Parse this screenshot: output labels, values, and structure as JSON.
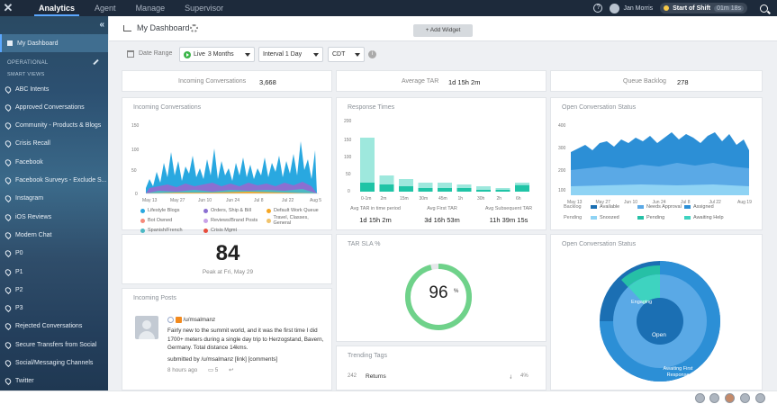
{
  "topbar": {
    "tabs": [
      "Analytics",
      "Agent",
      "Manage",
      "Supervisor"
    ],
    "user_name": "Jan Morris",
    "shift_label": "Start of Shift",
    "shift_time": "01m 18s"
  },
  "sidebar": {
    "my_dashboard": "My Dashboard",
    "section_operational": "OPERATIONAL",
    "section_smart_views": "SMART VIEWS",
    "items": [
      "ABC Intents",
      "Approved Conversations",
      "Community - Products & Blogs",
      "Crisis Recall",
      "Facebook",
      "Facebook Surveys - Exclude S...",
      "Instagram",
      "iOS Reviews",
      "Modern Chat",
      "P0",
      "P1",
      "P2",
      "P3",
      "Rejected Conversations",
      "Secure Transfers from Social",
      "Social/Messaging Channels",
      "Twitter"
    ]
  },
  "header": {
    "title": "My Dashboard",
    "add_widget": "+ Add Widget"
  },
  "filters": {
    "date_range_label": "Date Range",
    "live": "Live",
    "period": "3 Months",
    "interval": "Interval 1 Day",
    "timezone": "CDT"
  },
  "stats": {
    "incoming_label": "Incoming Conversations",
    "incoming_value": "3,668",
    "avg_tar_label": "Average TAR",
    "avg_tar_value": "1d 15h 2m",
    "queue_label": "Queue Backlog",
    "queue_value": "278"
  },
  "incoming_chart": {
    "title": "Incoming Conversations",
    "y_ticks": [
      "150",
      "100",
      "50",
      "0"
    ],
    "x_ticks": [
      "May 13",
      "May 27",
      "Jun 10",
      "Jun 24",
      "Jul 8",
      "Jul 22",
      "Aug 5"
    ],
    "legend": [
      {
        "name": "Lifestyle Blogs",
        "color": "#29a8e0"
      },
      {
        "name": "Orders, Ship & Bill",
        "color": "#8b6fd1"
      },
      {
        "name": "Default Work Queue",
        "color": "#f5a623"
      },
      {
        "name": "Bot Owned",
        "color": "#f58a7b"
      },
      {
        "name": "Reviews/Brand Posts",
        "color": "#c8a2e8"
      },
      {
        "name": "Travel, Classes, General",
        "color": "#f0c36d"
      },
      {
        "name": "Spanish/French",
        "color": "#4cb8c4"
      },
      {
        "name": "Crisis Mgmt",
        "color": "#e74c3c"
      }
    ]
  },
  "response_times": {
    "title": "Response Times",
    "y_ticks": [
      "200",
      "150",
      "100",
      "50",
      "0"
    ],
    "categories": [
      "0-1m",
      "2m",
      "15m",
      "30m",
      "45m",
      "1h",
      "30h",
      "2h",
      "6h"
    ],
    "stats": [
      {
        "label": "Avg TAR in time period",
        "value": "1d 15h 2m"
      },
      {
        "label": "Avg First TAR",
        "value": "3d 16h 53m"
      },
      {
        "label": "Avg Subsequent TAR",
        "value": "11h 39m 15s"
      }
    ]
  },
  "open_status_area": {
    "title": "Open Conversation Status",
    "y_ticks": [
      "400",
      "300",
      "200",
      "100"
    ],
    "x_ticks": [
      "May 13",
      "May 27",
      "Jun 10",
      "Jun 24",
      "Jul 8",
      "Jul 22",
      "Aug 19"
    ],
    "legend_row1_label": "Backlog",
    "legend_row2_label": "Pending",
    "legend": [
      {
        "name": "Available",
        "color": "#1b6fb3"
      },
      {
        "name": "Needs Approval",
        "color": "#5aa9e6"
      },
      {
        "name": "Assigned",
        "color": "#2c8fd6"
      },
      {
        "name": "Snoozed",
        "color": "#8fd3f4"
      },
      {
        "name": "Pending",
        "color": "#26c0a6"
      },
      {
        "name": "Awaiting Help",
        "color": "#3ed3c0"
      }
    ]
  },
  "peak": {
    "value": "84",
    "label": "Peak at Fri, May 29"
  },
  "tar_sla": {
    "title": "TAR SLA %",
    "value": "96",
    "unit": "%"
  },
  "open_status_pie": {
    "title": "Open Conversation Status",
    "labels": {
      "center": "Open",
      "engaging": "Engaging",
      "awaiting": "Awaiting First Response"
    }
  },
  "incoming_posts": {
    "title": "Incoming Posts",
    "author": "/u/msalmanz",
    "text": "Fairly new to the summit world, and it was the first time I did 1700+ meters during a single day trip to Herzogstand, Bavern, Germany. Total distance 14kms.",
    "submitted": "submitted by /u/msalmanz [link] [comments]",
    "time": "8 hours ago",
    "comments": "5"
  },
  "trending_tags": {
    "title": "Trending Tags",
    "rows": [
      {
        "count": "242",
        "tag": "Returns",
        "pct": "4%"
      }
    ]
  },
  "chart_data": [
    {
      "type": "bar",
      "title": "Response Times",
      "categories": [
        "0-1m",
        "2m",
        "15m",
        "30m",
        "45m",
        "1h",
        "30h",
        "2h",
        "6h"
      ],
      "series": [
        {
          "values": [
            150,
            45,
            35,
            25,
            25,
            20,
            15,
            10,
            25
          ]
        },
        {
          "values": [
            25,
            20,
            15,
            10,
            10,
            10,
            5,
            5,
            18
          ]
        }
      ],
      "ylim": [
        0,
        200
      ]
    }
  ]
}
